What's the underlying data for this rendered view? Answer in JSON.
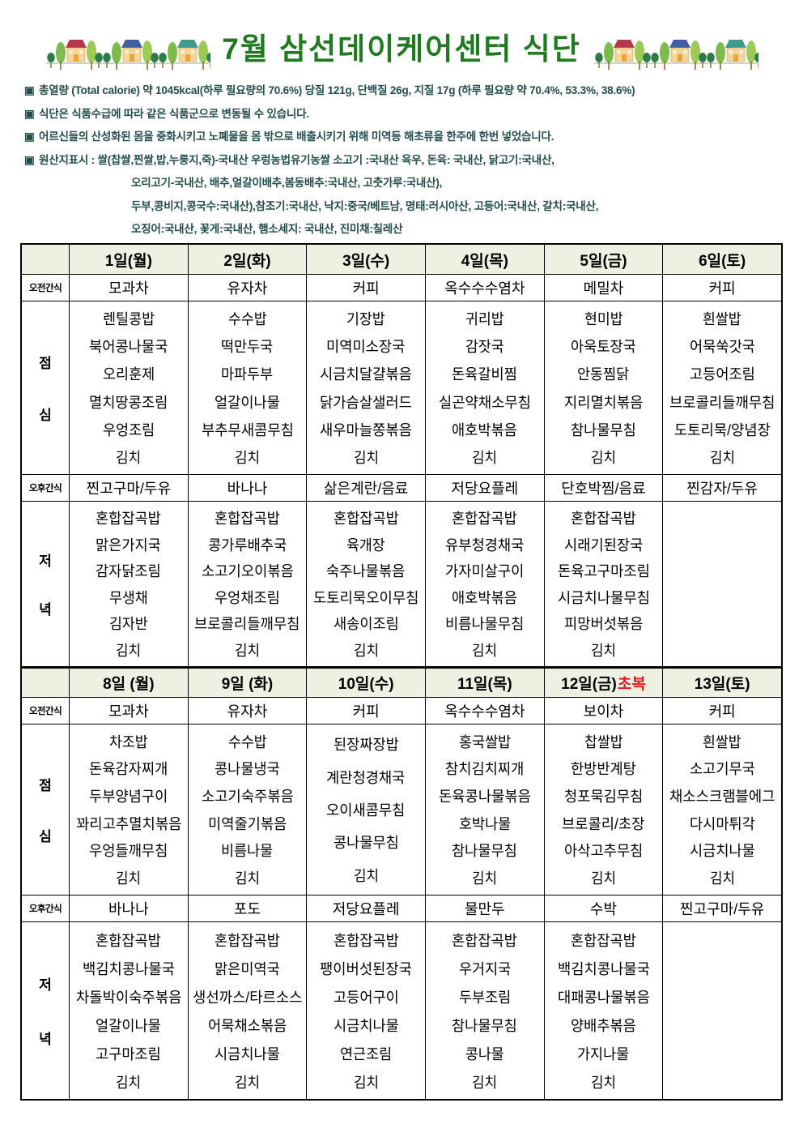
{
  "page": {
    "title": "7월 삼선데이케어센터 식단"
  },
  "colors": {
    "title_green": "#217a21",
    "note_teal": "#234e4a",
    "header_bg": "#ecf1e1",
    "mark_red": "#e01b1b"
  },
  "icons": {
    "decoration": "houses-and-trees"
  },
  "notes": [
    {
      "bullet": "▣",
      "indent": false,
      "text": "총열량 (Total calorie) 약 1045kcal(하루 필요량의 70.6%) 당질 121g, 단백질 26g, 지질 17g  (하루 필요량 약 70.4%, 53.3%, 38.6%)"
    },
    {
      "bullet": "▣",
      "indent": false,
      "text": "식단은 식품수급에 따라 같은 식품군으로 변동될 수 있습니다."
    },
    {
      "bullet": "▣",
      "indent": false,
      "text": "어르신들의 산성화된 몸을 중화시키고 노폐물을 몸 밖으로 배출시키기 위해 미역등 해초류을 한주에 한번 넣었습니다."
    },
    {
      "bullet": "▣",
      "indent": false,
      "text": "원산지표시 : 쌀(찹쌀,찐쌀,밥,누룽지,죽)-국내산 우렁농법유기농쌀  소고기 :국내산 육우, 돈육: 국내산, 닭고기:국내산,"
    },
    {
      "bullet": "",
      "indent": true,
      "text": "오리고기-국내산,  배추,얼갈이배추,봄동배추:국내산, 고춧가루:국내산),"
    },
    {
      "bullet": "",
      "indent": true,
      "text": "두부,콩비지,콩국수:국내산),참조기:국내산, 낙지:중국/베트남, 명태:러시아산, 고등어:국내산, 갈치:국내산,"
    },
    {
      "bullet": "",
      "indent": true,
      "text": "오징어:국내산, 꽃게:국내산, 햄소세지: 국내산, 진미채:칠레산"
    }
  ],
  "row_labels": {
    "morning_snack": "오전간식",
    "lunch": [
      "점",
      "심"
    ],
    "afternoon_snack": "오후간식",
    "dinner": [
      "저",
      "녁"
    ]
  },
  "weeks": [
    {
      "days": [
        {
          "label": "1일(월)",
          "mark": ""
        },
        {
          "label": "2일(화)",
          "mark": ""
        },
        {
          "label": "3일(수)",
          "mark": ""
        },
        {
          "label": "4일(목)",
          "mark": ""
        },
        {
          "label": "5일(금)",
          "mark": ""
        },
        {
          "label": "6일(토)",
          "mark": ""
        }
      ],
      "morning_snack": [
        "모과차",
        "유자차",
        "커피",
        "옥수수수염차",
        "메밀차",
        "커피"
      ],
      "lunch": [
        [
          "렌틸콩밥",
          "북어콩나물국",
          "오리훈제",
          "멸치땅콩조림",
          "우엉조림",
          "김치"
        ],
        [
          "수수밥",
          "떡만두국",
          "마파두부",
          "얼갈이나물",
          "부추무새콤무침",
          "김치"
        ],
        [
          "기장밥",
          "미역미소장국",
          "시금치달걀볶음",
          "닭가슴살샐러드",
          "새우마늘쫑볶음",
          "김치"
        ],
        [
          "귀리밥",
          "감잣국",
          "돈육갈비찜",
          "실곤약채소무침",
          "애호박볶음",
          "김치"
        ],
        [
          "현미밥",
          "아욱토장국",
          "안동찜닭",
          "지리멸치볶음",
          "참나물무침",
          "김치"
        ],
        [
          "흰쌀밥",
          "어묵쑥갓국",
          "고등어조림",
          "브로콜리들깨무침",
          "도토리묵/양념장",
          "김치"
        ]
      ],
      "afternoon_snack": [
        "찐고구마/두유",
        "바나나",
        "삶은계란/음료",
        "저당요플레",
        "단호박찜/음료",
        "찐감자/두유"
      ],
      "dinner": [
        [
          "혼합잡곡밥",
          "맑은가지국",
          "감자닭조림",
          "무생채",
          "김자반",
          "김치"
        ],
        [
          "혼합잡곡밥",
          "콩가루배추국",
          "소고기오이볶음",
          "우엉채조림",
          "브로콜리들깨무침",
          "김치"
        ],
        [
          "혼합잡곡밥",
          "육개장",
          "숙주나물볶음",
          "도토리묵오이무침",
          "새송이조림",
          "김치"
        ],
        [
          "혼합잡곡밥",
          "유부청경채국",
          "가자미살구이",
          "애호박볶음",
          "비름나물무침",
          "김치"
        ],
        [
          "혼합잡곡밥",
          "시래기된장국",
          "돈육고구마조림",
          "시금치나물무침",
          "피망버섯볶음",
          "김치"
        ],
        []
      ]
    },
    {
      "days": [
        {
          "label": "8일 (월)",
          "mark": ""
        },
        {
          "label": "9일 (화)",
          "mark": ""
        },
        {
          "label": "10일(수)",
          "mark": ""
        },
        {
          "label": "11일(목)",
          "mark": ""
        },
        {
          "label": "12일(금)",
          "mark": "초복"
        },
        {
          "label": "13일(토)",
          "mark": ""
        }
      ],
      "morning_snack": [
        "모과차",
        "유자차",
        "커피",
        "옥수수수염차",
        "보이차",
        "커피"
      ],
      "lunch": [
        [
          "차조밥",
          "돈육감자찌개",
          "두부양념구이",
          "꽈리고추멸치볶음",
          "우엉들깨무침",
          "김치"
        ],
        [
          "수수밥",
          "콩나물냉국",
          "소고기숙주볶음",
          "미역줄기볶음",
          "비름나물",
          "김치"
        ],
        [
          "된장짜장밥",
          "계란청경채국",
          "오이새콤무침",
          "콩나물무침",
          "김치"
        ],
        [
          "홍국쌀밥",
          "참치김치찌개",
          "돈육콩나물볶음",
          "호박나물",
          "참나물무침",
          "김치"
        ],
        [
          "찹쌀밥",
          "한방반계탕",
          "청포묵김무침",
          "브로콜리/초장",
          "아삭고추무침",
          "김치"
        ],
        [
          "흰쌀밥",
          "소고기무국",
          "채소스크램블에그",
          "다시마튀각",
          "시금치나물",
          "김치"
        ]
      ],
      "afternoon_snack": [
        "바나나",
        "포도",
        "저당요플레",
        "물만두",
        "수박",
        "찐고구마/두유"
      ],
      "dinner": [
        [
          "혼합잡곡밥",
          "백김치콩나물국",
          "차돌박이숙주볶음",
          "얼갈이나물",
          "고구마조림",
          "김치"
        ],
        [
          "혼합잡곡밥",
          "맑은미역국",
          "생선까스/타르소스",
          "어묵채소볶음",
          "시금치나물",
          "김치"
        ],
        [
          "혼합잡곡밥",
          "팽이버섯된장국",
          "고등어구이",
          "시금치나물",
          "연근조림",
          "김치"
        ],
        [
          "혼합잡곡밥",
          "우거지국",
          "두부조림",
          "참나물무침",
          "콩나물",
          "김치"
        ],
        [
          "혼합잡곡밥",
          "백김치콩나물국",
          "대패콩나물볶음",
          "양배추볶음",
          "가지나물",
          "김치"
        ],
        []
      ]
    }
  ]
}
